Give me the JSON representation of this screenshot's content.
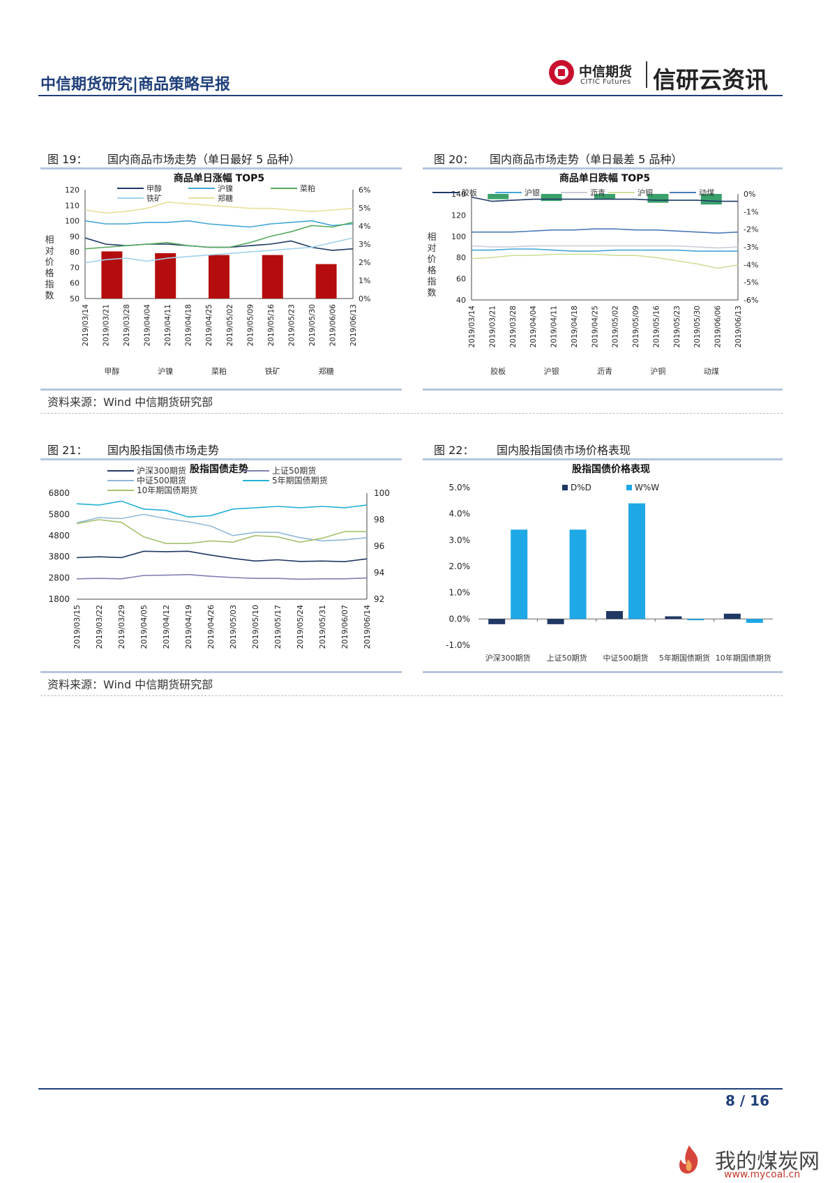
{
  "header": {
    "title": "中信期货研究|商品策略早报",
    "logo_cn": "中信期货",
    "logo_en": "CITIC Futures",
    "brand": "信研云资讯"
  },
  "fig19": {
    "number": "图 19：",
    "title": "国内商品市场走势（单日最好 5 品种）",
    "chart_title": "商品单日涨幅 TOP5",
    "ylabel": "相对价格指数"
  },
  "fig20": {
    "number": "图 20：",
    "title": "国内商品市场走势（单日最差 5 品种）",
    "chart_title": "商品单日跌幅 TOP5",
    "ylabel": "相对价格指数"
  },
  "fig21": {
    "number": "图 21：",
    "title": "国内股指国债市场走势",
    "chart_title": "股指国债走势"
  },
  "fig22": {
    "number": "图 22：",
    "title": "国内股指国债市场价格表现",
    "chart_title": "股指国债价格表现"
  },
  "source1": "资料来源：Wind  中信期货研究部",
  "source2": "资料来源：Wind  中信期货研究部",
  "footer": {
    "page": "8 / 16"
  },
  "watermark": {
    "text": "我的煤炭网",
    "url": "www.mycoal.cn"
  },
  "colors": {
    "navy": "#1f3f7a",
    "red_bar": "#b50d0d",
    "green_bar": "#3aa16b",
    "d_bar": "#1f3864",
    "w_bar": "#1ea8e6"
  },
  "chart_data": [
    {
      "id": "fig19",
      "type": "line+bar",
      "title": "商品单日涨幅 TOP5",
      "x": [
        "2019/03/14",
        "2019/03/21",
        "2019/03/28",
        "2019/04/04",
        "2019/04/11",
        "2019/04/18",
        "2019/04/25",
        "2019/05/02",
        "2019/05/09",
        "2019/05/16",
        "2019/05/23",
        "2019/05/30",
        "2019/06/06",
        "2019/06/13"
      ],
      "ylim_left": [
        50,
        120
      ],
      "yticks_left": [
        50,
        60,
        70,
        80,
        90,
        100,
        110,
        120
      ],
      "ylim_right": [
        0,
        6
      ],
      "yticks_right": [
        "0%",
        "1%",
        "2%",
        "3%",
        "4%",
        "5%",
        "6%"
      ],
      "series": [
        {
          "name": "甲醇",
          "color": "#1f3864",
          "values": [
            89,
            85,
            84,
            85,
            85,
            84,
            83,
            83,
            84,
            85,
            87,
            83,
            81,
            82
          ]
        },
        {
          "name": "沪镍",
          "color": "#41a6d6",
          "values": [
            100,
            98,
            98,
            99,
            99,
            100,
            98,
            97,
            96,
            98,
            99,
            100,
            97,
            98
          ]
        },
        {
          "name": "菜粕",
          "color": "#56a95f",
          "values": [
            82,
            83,
            84,
            85,
            86,
            84,
            83,
            83,
            86,
            90,
            93,
            97,
            96,
            99
          ]
        },
        {
          "name": "铁矿",
          "color": "#9fd3ec",
          "values": [
            73,
            75,
            76,
            74,
            76,
            77,
            78,
            79,
            80,
            81,
            82,
            83,
            86,
            89
          ]
        },
        {
          "name": "郑糖",
          "color": "#e9df9c",
          "values": [
            107,
            105,
            106,
            108,
            112,
            111,
            110,
            109,
            108,
            108,
            107,
            106,
            107,
            108
          ]
        }
      ],
      "bars": {
        "categories": [
          "甲醇",
          "沪镍",
          "菜粕",
          "铁矿",
          "郑糖"
        ],
        "values": [
          2.6,
          2.5,
          2.4,
          2.4,
          1.9
        ],
        "color": "#b50d0d"
      }
    },
    {
      "id": "fig20",
      "type": "line+bar",
      "title": "商品单日跌幅 TOP5",
      "x": [
        "2019/03/14",
        "2019/03/21",
        "2019/03/28",
        "2019/04/04",
        "2019/04/11",
        "2019/04/18",
        "2019/04/25",
        "2019/05/02",
        "2019/05/09",
        "2019/05/16",
        "2019/05/23",
        "2019/05/30",
        "2019/06/06",
        "2019/06/13"
      ],
      "ylim_left": [
        40,
        140
      ],
      "yticks_left": [
        40,
        60,
        80,
        100,
        120,
        140
      ],
      "ylim_right": [
        -6,
        0
      ],
      "yticks_right": [
        "0%",
        "-1%",
        "-2%",
        "-3%",
        "-4%",
        "-5%",
        "-6%"
      ],
      "series": [
        {
          "name": "胶板",
          "color": "#1f3864",
          "values": [
            137,
            133,
            134,
            135,
            135,
            135,
            135,
            135,
            135,
            134,
            134,
            134,
            133,
            133
          ]
        },
        {
          "name": "沪银",
          "color": "#41a6d6",
          "values": [
            87,
            87,
            88,
            88,
            87,
            86,
            86,
            87,
            87,
            87,
            87,
            86,
            86,
            86
          ]
        },
        {
          "name": "沥青",
          "color": "#c9cbd6",
          "values": [
            91,
            90,
            90,
            91,
            91,
            91,
            91,
            91,
            91,
            91,
            91,
            90,
            89,
            90
          ]
        },
        {
          "name": "沪铜",
          "color": "#cfdf9a",
          "values": [
            79,
            80,
            82,
            82,
            83,
            83,
            83,
            82,
            82,
            80,
            77,
            74,
            70,
            73
          ]
        },
        {
          "name": "动煤",
          "color": "#4a7ab8",
          "values": [
            104,
            104,
            104,
            105,
            106,
            106,
            107,
            107,
            106,
            106,
            105,
            104,
            103,
            104
          ]
        }
      ],
      "bars": {
        "categories": [
          "胶板",
          "沪银",
          "沥青",
          "沪铜",
          "动煤"
        ],
        "values": [
          -0.3,
          -0.4,
          -0.3,
          -0.5,
          -0.6
        ],
        "color": "#3aa16b"
      }
    },
    {
      "id": "fig21",
      "type": "line",
      "title": "股指国债走势",
      "x": [
        "2019/03/15",
        "2019/03/22",
        "2019/03/29",
        "2019/04/05",
        "2019/04/12",
        "2019/04/19",
        "2019/04/26",
        "2019/05/03",
        "2019/05/10",
        "2019/05/17",
        "2019/05/24",
        "2019/05/31",
        "2019/06/07",
        "2019/06/14"
      ],
      "ylim_left": [
        1800,
        6800
      ],
      "yticks_left": [
        1800,
        2800,
        3800,
        4800,
        5800,
        6800
      ],
      "ylim_right": [
        92,
        100
      ],
      "yticks_right": [
        92,
        94,
        96,
        98,
        100
      ],
      "series": [
        {
          "name": "沪深300期货",
          "axis": "left",
          "color": "#1f3864",
          "values": [
            3760,
            3800,
            3760,
            4060,
            4040,
            4060,
            3880,
            3720,
            3600,
            3660,
            3580,
            3600,
            3570,
            3700
          ]
        },
        {
          "name": "上证50期货",
          "axis": "left",
          "color": "#7f7fb2",
          "values": [
            2760,
            2780,
            2760,
            2920,
            2930,
            2960,
            2880,
            2820,
            2780,
            2780,
            2740,
            2760,
            2760,
            2800
          ]
        },
        {
          "name": "中证500期货",
          "axis": "left",
          "color": "#8fb8d8",
          "values": [
            5400,
            5650,
            5600,
            5800,
            5600,
            5450,
            5250,
            4800,
            4950,
            4950,
            4700,
            4550,
            4600,
            4700
          ]
        },
        {
          "name": "5年期国债期货",
          "axis": "right",
          "color": "#23b0d6",
          "values": [
            99.2,
            99.1,
            99.4,
            98.8,
            98.7,
            98.2,
            98.3,
            98.8,
            98.9,
            99.0,
            98.9,
            99.0,
            98.9,
            99.1
          ]
        },
        {
          "name": "10年期国债期货",
          "axis": "right",
          "color": "#a6c06f",
          "values": [
            97.7,
            98.0,
            97.8,
            96.7,
            96.2,
            96.2,
            96.4,
            96.3,
            96.8,
            96.7,
            96.3,
            96.6,
            97.1,
            97.1
          ]
        }
      ]
    },
    {
      "id": "fig22",
      "type": "bar",
      "title": "股指国债价格表现",
      "categories": [
        "沪深300期货",
        "上证50期货",
        "中证500期货",
        "5年期国债期货",
        "10年期国债期货"
      ],
      "ylim": [
        -1.0,
        5.0
      ],
      "yticks": [
        "-1.0%",
        "0.0%",
        "1.0%",
        "2.0%",
        "3.0%",
        "4.0%",
        "5.0%"
      ],
      "series": [
        {
          "name": "D%D",
          "color": "#1f3864",
          "values": [
            -0.2,
            -0.2,
            0.3,
            0.1,
            0.2
          ]
        },
        {
          "name": "W%W",
          "color": "#1ea8e6",
          "values": [
            3.4,
            3.4,
            4.4,
            -0.05,
            -0.15
          ]
        }
      ]
    }
  ]
}
